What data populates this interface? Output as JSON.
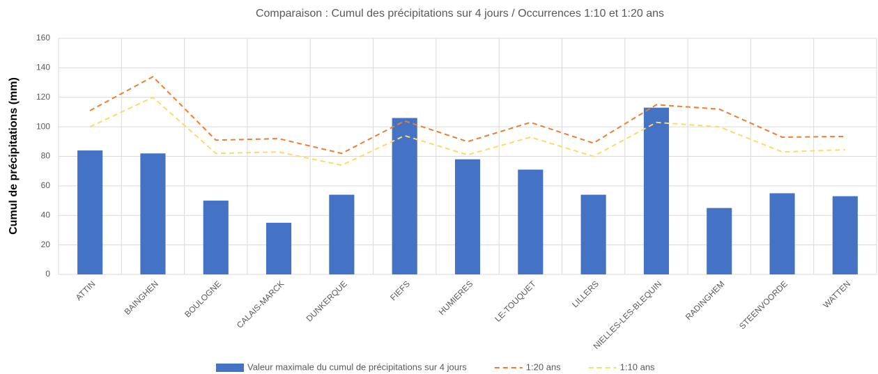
{
  "chart_data": {
    "type": "bar",
    "title": "Comparaison : Cumul des précipitations sur 4 jours / Occurrences 1:10 et 1:20 ans",
    "y_label": "Cumul de précipitations (mm)",
    "categories": [
      "ATTIN",
      "BAINGHEN",
      "BOULOGNE",
      "CALAIS-MARCK",
      "DUNKERQUE",
      "FIEFS",
      "HUMIERES",
      "LE-TOUQUET",
      "LILLERS",
      "NIELLES-LES-BLEQUIN",
      "RADINGHEM",
      "STEENVOORDE",
      "WATTEN"
    ],
    "series": [
      {
        "name": "Valeur maximale du cumul de précipitations sur 4 jours",
        "type": "bar",
        "color": "#4472c4",
        "values": [
          84,
          82,
          50,
          35,
          54,
          106,
          78,
          71,
          54,
          113,
          45,
          55,
          53
        ]
      },
      {
        "name": "1:20 ans",
        "type": "line",
        "dashed": true,
        "color": "#ed7d31",
        "values": [
          111,
          134,
          91,
          92,
          82,
          104,
          90,
          103,
          89,
          115,
          112,
          93,
          93.5
        ]
      },
      {
        "name": "1:10 ans",
        "type": "line",
        "dashed": true,
        "color": "#ffd966",
        "values": [
          100,
          120,
          82,
          83,
          74,
          94,
          81,
          93,
          80,
          103,
          100,
          83,
          84.5
        ]
      }
    ],
    "ylim": [
      0,
      160
    ],
    "yticks": [
      0,
      20,
      40,
      60,
      80,
      100,
      120,
      140,
      160
    ],
    "grid": true,
    "legend": "bottom"
  }
}
